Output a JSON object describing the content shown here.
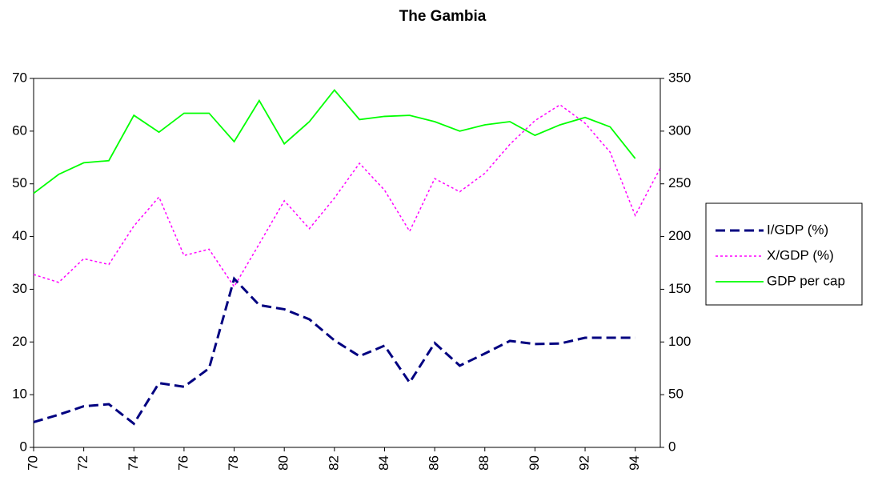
{
  "chart_data": {
    "type": "line",
    "title": "The Gambia",
    "x": [
      70,
      71,
      72,
      73,
      74,
      75,
      76,
      77,
      78,
      79,
      80,
      81,
      82,
      83,
      84,
      85,
      86,
      87,
      88,
      89,
      90,
      91,
      92,
      93,
      94,
      95
    ],
    "xlim": [
      70,
      95
    ],
    "xticks": [
      70,
      72,
      74,
      76,
      78,
      80,
      82,
      84,
      86,
      88,
      90,
      92,
      94
    ],
    "ylim": [
      0,
      70
    ],
    "yticks": [
      0,
      10,
      20,
      30,
      40,
      50,
      60,
      70
    ],
    "y2lim": [
      0,
      350
    ],
    "y2ticks": [
      0,
      50,
      100,
      150,
      200,
      250,
      300,
      350
    ],
    "legend": "right",
    "series": [
      {
        "name": "I/GDP (%)",
        "color": "#000080",
        "dash": "dashed",
        "values": [
          4.8,
          6.2,
          7.8,
          8.2,
          4.5,
          12.2,
          11.5,
          15,
          32,
          27,
          26.2,
          24.3,
          20.3,
          17.3,
          19.3,
          12.3,
          19.8,
          15.5,
          17.8,
          20.2,
          19.6,
          19.7,
          20.8,
          20.8,
          20.8,
          null
        ]
      },
      {
        "name": "X/GDP (%)",
        "color": "#ff00ff",
        "dash": "dotted",
        "values": [
          32.8,
          31.3,
          35.8,
          34.7,
          42,
          47.5,
          36.4,
          37.6,
          30.5,
          38.6,
          46.8,
          41.5,
          47.3,
          53.9,
          48.8,
          41,
          51,
          48.5,
          52,
          57.5,
          62,
          65,
          61.5,
          56,
          44,
          53
        ]
      },
      {
        "name": "GDP per cap",
        "color": "#00ff00",
        "dash": "solid",
        "axis": "y2",
        "values": [
          241,
          259,
          270,
          272,
          315,
          299,
          317,
          317,
          290,
          329,
          288,
          309,
          339,
          311,
          314,
          315,
          309,
          300,
          306,
          309,
          296,
          306,
          313,
          304,
          274,
          null
        ]
      }
    ]
  }
}
